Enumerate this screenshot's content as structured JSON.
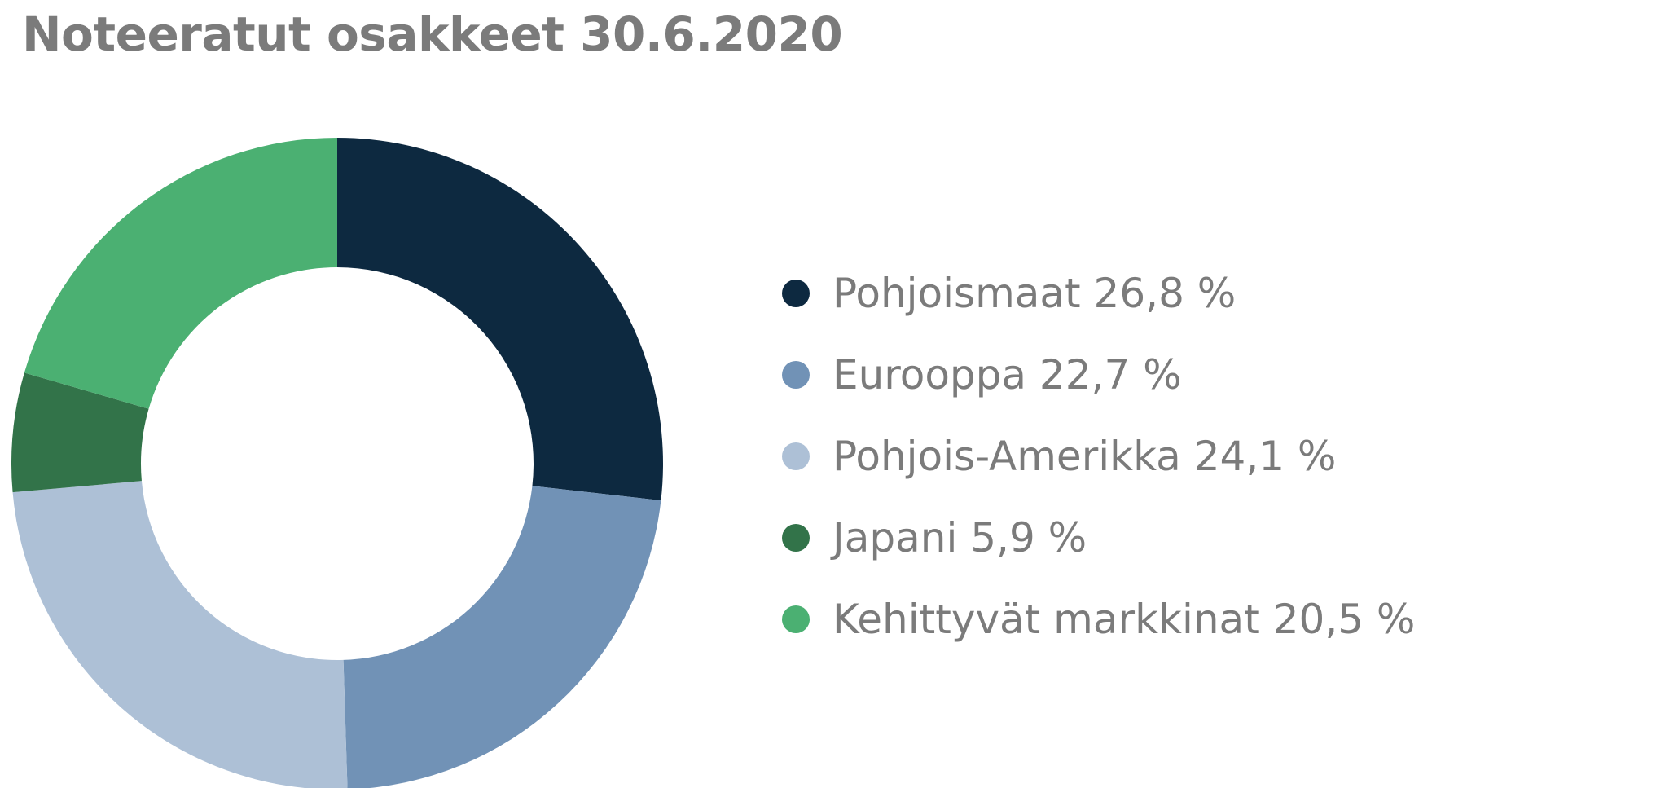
{
  "chart_data": {
    "type": "pie",
    "variant": "donut",
    "title": "Noteeratut osakkeet 30.6.2020",
    "legend_position": "right",
    "start_angle": "top",
    "direction": "clockwise",
    "slices": [
      {
        "label": "Pohjoismaat 26,8 %",
        "name": "Pohjoismaat",
        "value": 26.8,
        "color": "#0d2940"
      },
      {
        "label": "Eurooppa 22,7 %",
        "name": "Eurooppa",
        "value": 22.7,
        "color": "#7192b6"
      },
      {
        "label": "Pohjois-Amerikka 24,1 %",
        "name": "Pohjois-Amerikka",
        "value": 24.1,
        "color": "#adc0d6"
      },
      {
        "label": "Japani 5,9 %",
        "name": "Japani",
        "value": 5.9,
        "color": "#327349"
      },
      {
        "label": "Kehittyvät markkinat 20,5 %",
        "name": "Kehittyvät markkinat",
        "value": 20.5,
        "color": "#4bb072"
      }
    ]
  }
}
